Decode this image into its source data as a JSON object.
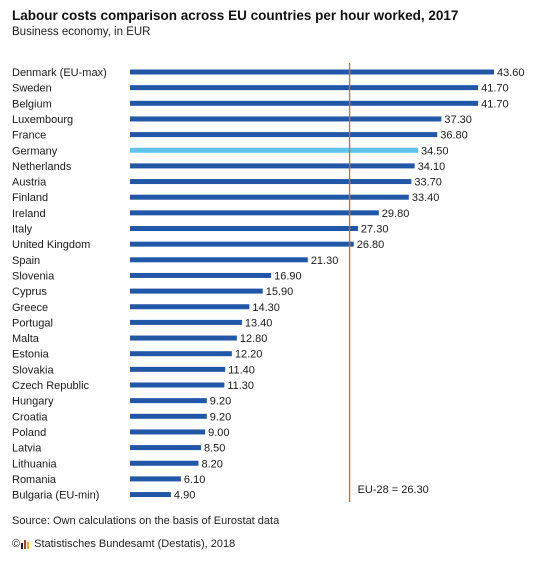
{
  "header": {
    "title": "Labour costs comparison across EU countries per hour worked, 2017",
    "subtitle": "Business economy, in EUR"
  },
  "footer": {
    "source": "Source: Own calculations on the basis of Eurostat data",
    "copyright_symbol": "©",
    "copyright": "Statistisches Bundesamt (Destatis), 2018"
  },
  "colors": {
    "bar": "#2256a6",
    "highlight": "#5fc3ec",
    "reference_line": "#d2691e"
  },
  "chart_data": {
    "type": "bar",
    "orientation": "horizontal",
    "title": "Labour costs comparison across EU countries per hour worked, 2017",
    "subtitle": "Business economy, in EUR",
    "categories": [
      "Denmark (EU-max)",
      "Sweden",
      "Belgium",
      "Luxembourg",
      "France",
      "Germany",
      "Netherlands",
      "Austria",
      "Finland",
      "Ireland",
      "Italy",
      "United Kingdom",
      "Spain",
      "Slovenia",
      "Cyprus",
      "Greece",
      "Portugal",
      "Malta",
      "Estonia",
      "Slovakia",
      "Czech Republic",
      "Hungary",
      "Croatia",
      "Poland",
      "Latvia",
      "Lithuania",
      "Romania",
      "Bulgaria (EU-min)"
    ],
    "values": [
      43.6,
      41.7,
      41.7,
      37.3,
      36.8,
      34.5,
      34.1,
      33.7,
      33.4,
      29.8,
      27.3,
      26.8,
      21.3,
      16.9,
      15.9,
      14.3,
      13.4,
      12.8,
      12.2,
      11.4,
      11.3,
      9.2,
      9.2,
      9.0,
      8.5,
      8.2,
      6.1,
      4.9
    ],
    "value_labels": [
      "43.60",
      "41.70",
      "41.70",
      "37.30",
      "36.80",
      "34.50",
      "34.10",
      "33.70",
      "33.40",
      "29.80",
      "27.30",
      "26.80",
      "21.30",
      "16.90",
      "15.90",
      "14.30",
      "13.40",
      "12.80",
      "12.20",
      "11.40",
      "11.30",
      "9.20",
      "9.20",
      "9.00",
      "8.50",
      "8.20",
      "6.10",
      "4.90"
    ],
    "highlight_category": "Germany",
    "reference_line": {
      "value": 26.3,
      "label": "EU-28 = 26.30"
    },
    "xlim": [
      0,
      43.6
    ],
    "grid": false,
    "legend": "none"
  }
}
